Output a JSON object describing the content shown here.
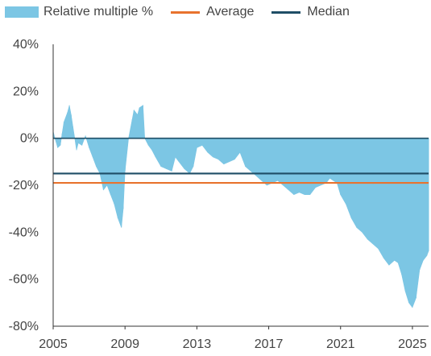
{
  "legend": {
    "relative": "Relative multiple %",
    "average": "Average",
    "median": "Median"
  },
  "colors": {
    "area": "#7cc6e4",
    "average": "#e8732e",
    "median": "#1f4e66",
    "axis": "#333333"
  },
  "chart_data": {
    "type": "area",
    "title": "",
    "xlabel": "",
    "ylabel": "",
    "x_ticks": [
      "2005",
      "2009",
      "2013",
      "2017",
      "2021",
      "2025"
    ],
    "y_ticks": [
      "40%",
      "20%",
      "0%",
      "-20%",
      "-40%",
      "-60%",
      "-80%"
    ],
    "xlim": [
      2005,
      2025.9
    ],
    "ylim": [
      -80,
      40
    ],
    "grid": false,
    "legend_position": "top",
    "series": [
      {
        "name": "Relative multiple %",
        "x": [
          2005.0,
          2005.1,
          2005.25,
          2005.4,
          2005.5,
          2005.6,
          2005.8,
          2005.9,
          2006.0,
          2006.1,
          2006.2,
          2006.3,
          2006.4,
          2006.6,
          2006.8,
          2007.0,
          2007.2,
          2007.4,
          2007.6,
          2007.8,
          2008.0,
          2008.2,
          2008.4,
          2008.6,
          2008.8,
          2008.9,
          2009.0,
          2009.2,
          2009.4,
          2009.5,
          2009.7,
          2009.8,
          2010.0,
          2010.1,
          2010.3,
          2010.5,
          2010.7,
          2011.0,
          2011.3,
          2011.6,
          2011.8,
          2012.0,
          2012.3,
          2012.6,
          2012.8,
          2013.0,
          2013.3,
          2013.6,
          2013.9,
          2014.2,
          2014.5,
          2014.8,
          2015.1,
          2015.4,
          2015.7,
          2016.0,
          2016.3,
          2016.6,
          2016.9,
          2017.2,
          2017.5,
          2017.8,
          2018.1,
          2018.4,
          2018.7,
          2019.0,
          2019.3,
          2019.6,
          2019.9,
          2020.2,
          2020.4,
          2020.6,
          2020.8,
          2021.0,
          2021.3,
          2021.6,
          2021.9,
          2022.2,
          2022.5,
          2022.8,
          2023.1,
          2023.4,
          2023.7,
          2024.0,
          2024.2,
          2024.4,
          2024.6,
          2024.8,
          2025.0,
          2025.2,
          2025.4,
          2025.6,
          2025.8,
          2025.9
        ],
        "values": [
          3,
          0,
          -4,
          -3,
          2,
          7,
          11,
          14,
          10,
          5,
          0,
          -5,
          -2,
          -3,
          1,
          -4,
          -8,
          -12,
          -15,
          -22,
          -20,
          -24,
          -28,
          -34,
          -38,
          -30,
          -14,
          0,
          8,
          12,
          10,
          13,
          14,
          0,
          -3,
          -5,
          -8,
          -12,
          -13,
          -14,
          -8,
          -10,
          -13,
          -15,
          -12,
          -4,
          -3,
          -6,
          -8,
          -9,
          -11,
          -10,
          -9,
          -6,
          -12,
          -14,
          -16,
          -18,
          -20,
          -19,
          -18,
          -20,
          -22,
          -24,
          -23,
          -24,
          -24,
          -21,
          -20,
          -19,
          -17,
          -18,
          -19,
          -24,
          -28,
          -34,
          -38,
          -40,
          -43,
          -45,
          -47,
          -51,
          -54,
          -52,
          -53,
          -58,
          -65,
          -70,
          -72,
          -68,
          -56,
          -52,
          -50,
          -48
        ]
      },
      {
        "name": "Average",
        "value": -19
      },
      {
        "name": "Median",
        "value": -15
      }
    ]
  }
}
